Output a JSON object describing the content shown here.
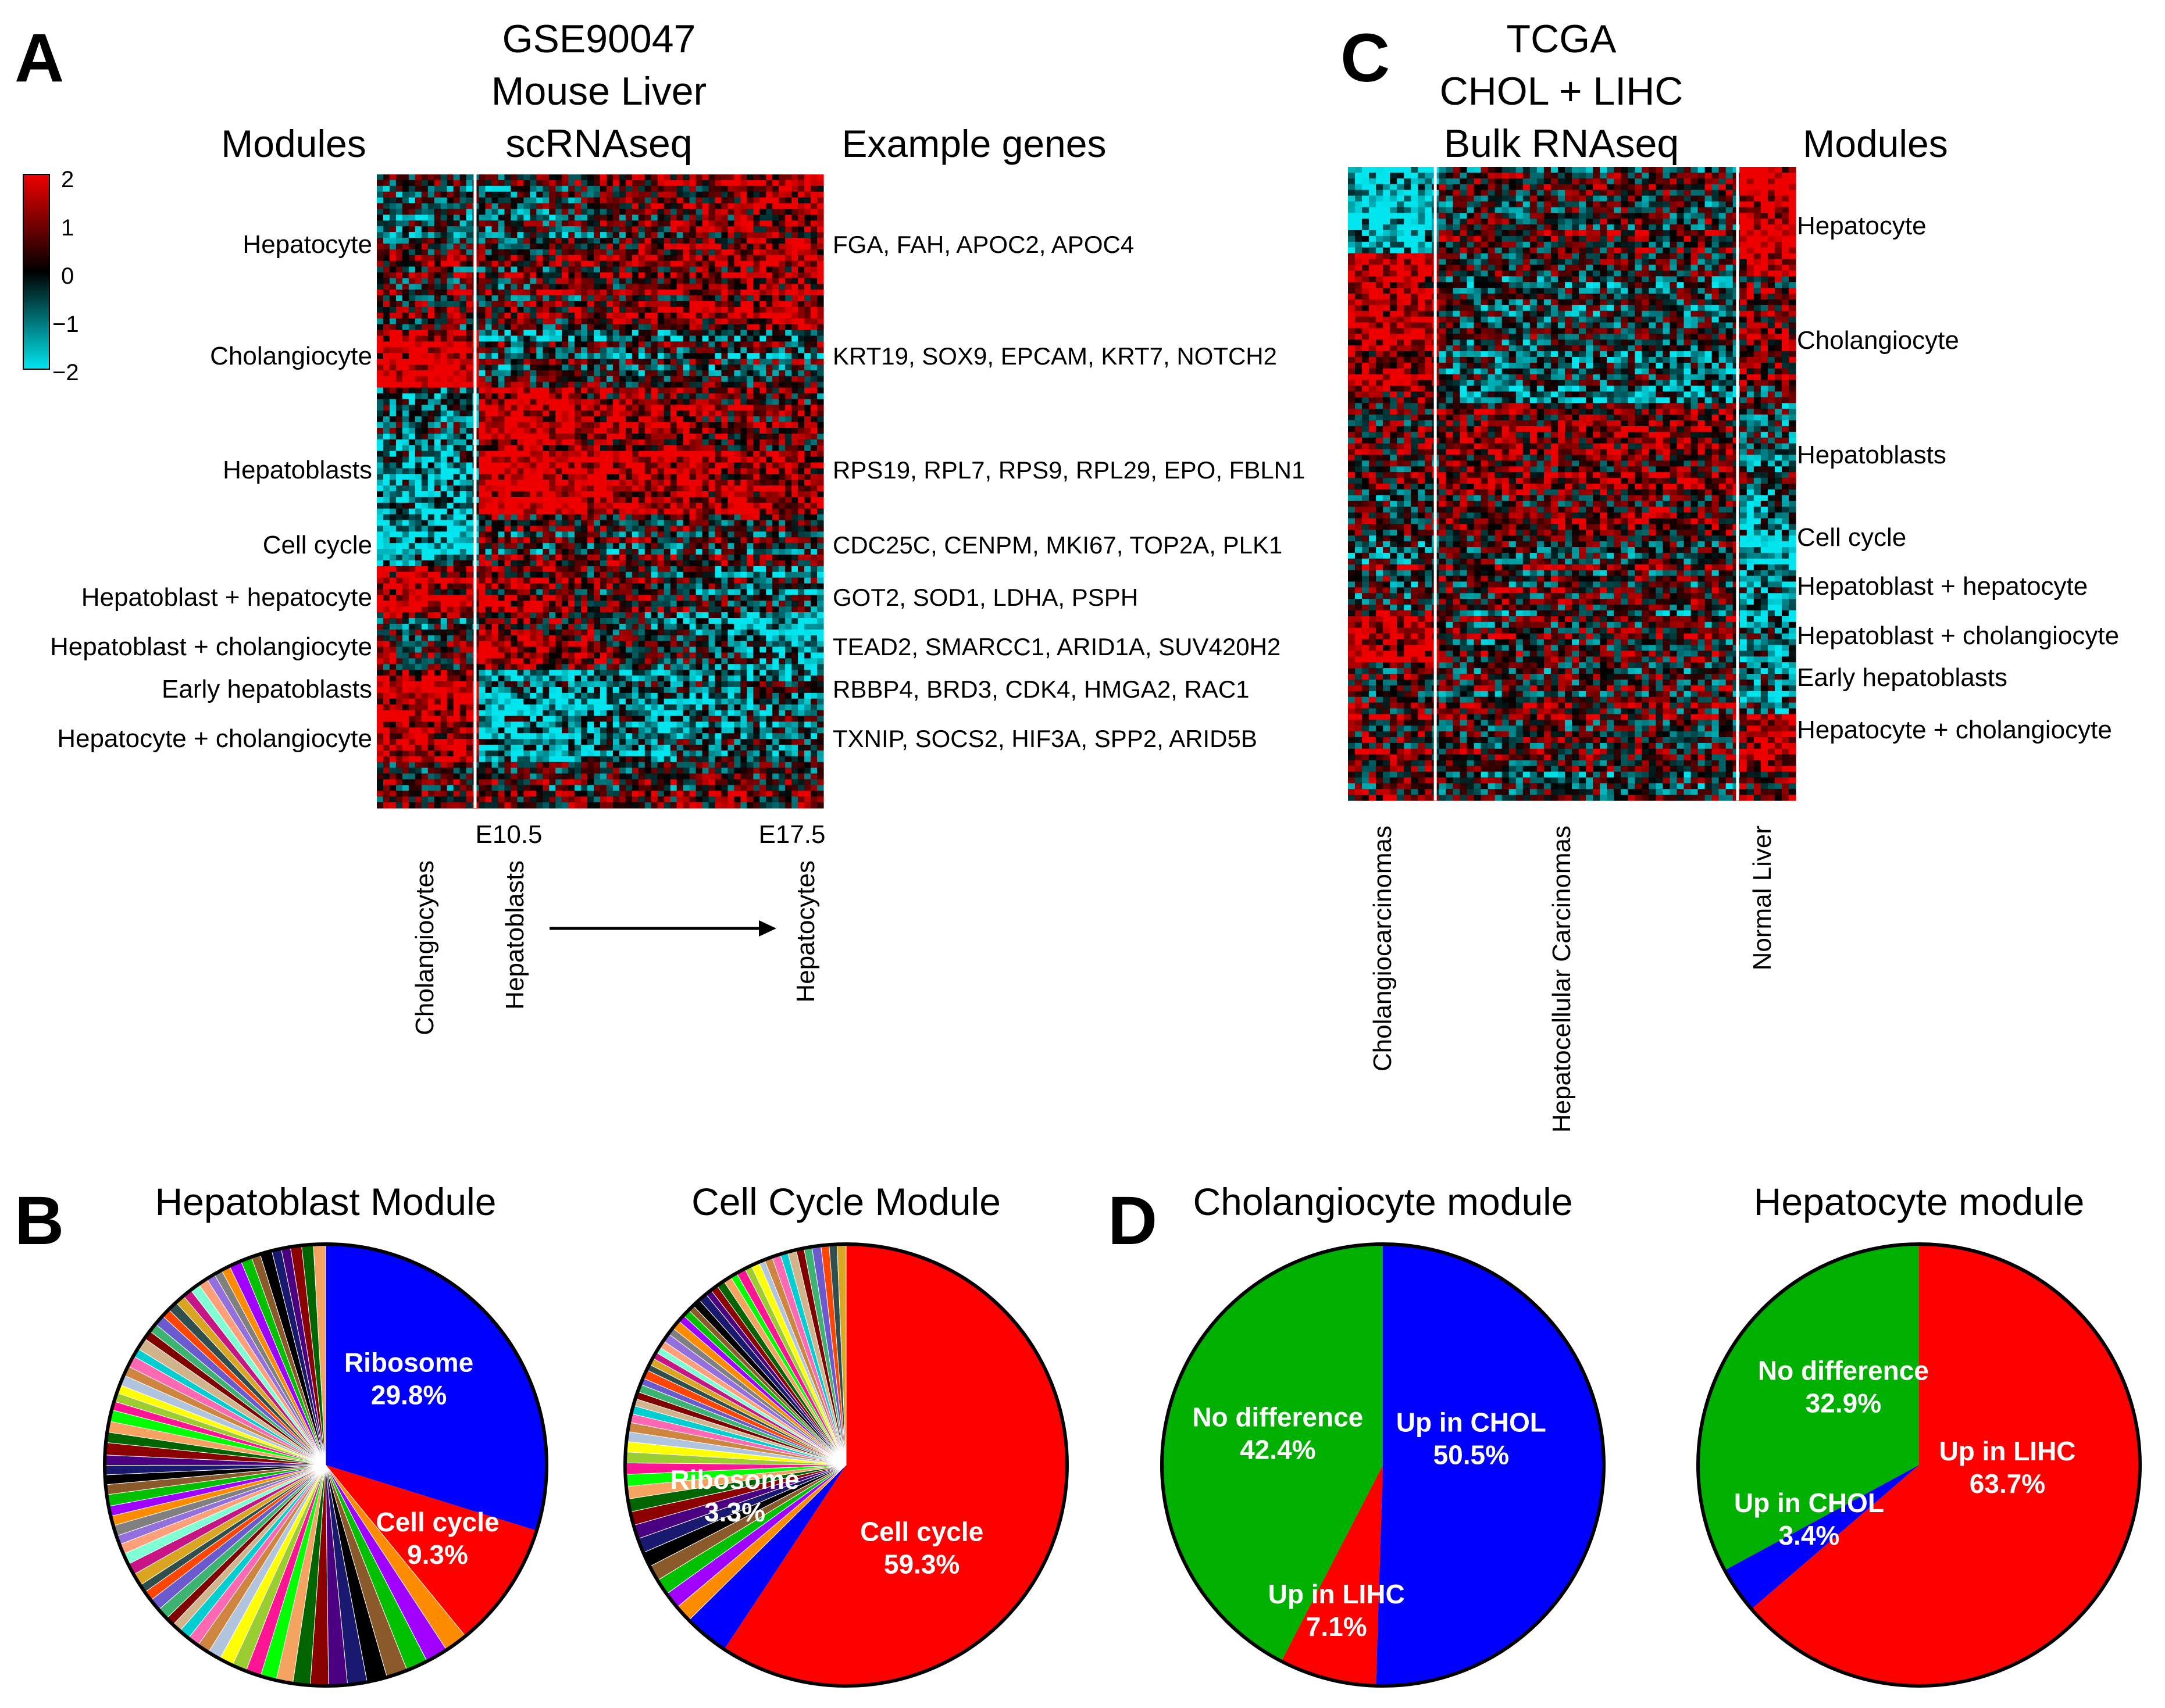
{
  "panels": {
    "A": "A",
    "B": "B",
    "C": "C",
    "D": "D"
  },
  "chart_data": [
    {
      "type": "heatmap",
      "panel": "A",
      "title": [
        "GSE90047",
        "Mouse Liver",
        "scRNAseq"
      ],
      "row_header": "Modules",
      "gene_header": "Example genes",
      "colorbar": {
        "min": -2,
        "max": 2,
        "ticks": [
          "2",
          "1",
          "0",
          "−1",
          "−2"
        ],
        "colors": [
          "#00e5ee",
          "#000000",
          "#ee0000"
        ]
      },
      "modules": [
        {
          "name": "Hepatocyte",
          "genes": "FGA, FAH, APOC2, APOC4"
        },
        {
          "name": "Cholangiocyte",
          "genes": "KRT19, SOX9, EPCAM, KRT7, NOTCH2"
        },
        {
          "name": "Hepatoblasts",
          "genes": "RPS19, RPL7, RPS9, RPL29, EPO, FBLN1"
        },
        {
          "name": "Cell cycle",
          "genes": "CDC25C, CENPM, MKI67, TOP2A, PLK1"
        },
        {
          "name": "Hepatoblast + hepatocyte",
          "genes": "GOT2, SOD1, LDHA, PSPH"
        },
        {
          "name": "Hepatoblast + cholangiocyte",
          "genes": "TEAD2, SMARCC1, ARID1A, SUV420H2"
        },
        {
          "name": "Early hepatoblasts",
          "genes": "RBBP4, BRD3, CDK4, HMGA2, RAC1"
        },
        {
          "name": "Hepatocyte + cholangiocyte",
          "genes": "TXNIP, SOCS2, HIF3A, SPP2, ARID5B"
        }
      ],
      "time_labels": [
        "E10.5",
        "E17.5"
      ],
      "column_groups": [
        "Cholangiocytes",
        "Hepatoblasts",
        "Hepatocytes"
      ]
    },
    {
      "type": "heatmap",
      "panel": "C",
      "title": [
        "TCGA",
        "CHOL + LIHC",
        "Bulk RNAseq"
      ],
      "row_header": "Modules",
      "modules": [
        "Hepatocyte",
        "Cholangiocyte",
        "Hepatoblasts",
        "Cell cycle",
        "Hepatoblast + hepatocyte",
        "Hepatoblast + cholangiocyte",
        "Early hepatoblasts",
        "Hepatocyte + cholangiocyte"
      ],
      "column_groups": [
        "Cholangiocarcinomas",
        "Hepatocellular Carcinomas",
        "Normal Liver"
      ]
    },
    {
      "type": "pie",
      "panel": "B",
      "title": "Hepatoblast Module",
      "slices": [
        {
          "label": "Ribosome",
          "value": 29.8,
          "display": "29.8%",
          "color": "#0000ff"
        },
        {
          "label": "Cell cycle",
          "value": 9.3,
          "display": "9.3%",
          "color": "#ff0000"
        },
        {
          "label": "",
          "value": 60.9,
          "display": "",
          "color": "many small categories"
        }
      ]
    },
    {
      "type": "pie",
      "panel": "B",
      "title": "Cell Cycle Module",
      "slices": [
        {
          "label": "Cell cycle",
          "value": 59.3,
          "display": "59.3%",
          "color": "#ff0000"
        },
        {
          "label": "Ribosome",
          "value": 3.3,
          "display": "3.3%",
          "color": "#0000ff"
        },
        {
          "label": "",
          "value": 37.4,
          "display": "",
          "color": "many small categories"
        }
      ]
    },
    {
      "type": "pie",
      "panel": "D",
      "title": "Cholangiocyte module",
      "slices": [
        {
          "label": "Up in CHOL",
          "value": 50.5,
          "display": "50.5%",
          "color": "#0000ff"
        },
        {
          "label": "Up in LIHC",
          "value": 7.1,
          "display": "7.1%",
          "color": "#ff0000"
        },
        {
          "label": "No difference",
          "value": 42.4,
          "display": "42.4%",
          "color": "#00b000"
        }
      ]
    },
    {
      "type": "pie",
      "panel": "D",
      "title": "Hepatocyte module",
      "slices": [
        {
          "label": "Up in  LIHC",
          "value": 63.7,
          "display": "63.7%",
          "color": "#ff0000"
        },
        {
          "label": "Up in CHOL",
          "value": 3.4,
          "display": "3.4%",
          "color": "#0000ff"
        },
        {
          "label": "No difference",
          "value": 32.9,
          "display": "32.9%",
          "color": "#00b000"
        }
      ]
    }
  ]
}
